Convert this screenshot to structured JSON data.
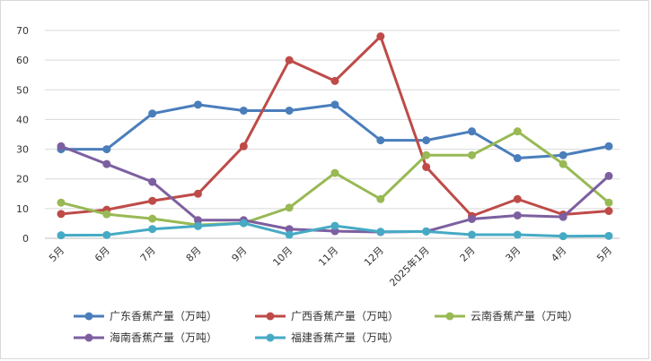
{
  "chart_data": {
    "type": "line",
    "categories": [
      "5月",
      "6月",
      "7月",
      "8月",
      "9月",
      "10月",
      "11月",
      "12月",
      "2025年1月",
      "2月",
      "3月",
      "4月",
      "5月"
    ],
    "ylim": [
      0,
      70
    ],
    "yticks": [
      0,
      10,
      20,
      30,
      40,
      50,
      60,
      70
    ],
    "grid": true,
    "legend_position": "bottom",
    "series": [
      {
        "name": "广东香蕉产量（万吨）",
        "color": "#4a7ebb",
        "values": [
          30,
          30,
          42,
          45,
          43,
          43,
          45,
          33,
          33,
          36,
          27,
          28,
          31
        ]
      },
      {
        "name": "广西香蕉产量（万吨）",
        "color": "#be4b48",
        "values": [
          8.2,
          9.6,
          12.6,
          15,
          31,
          60,
          53,
          68,
          24,
          7.5,
          13.2,
          8,
          9.2
        ]
      },
      {
        "name": "云南香蕉产量（万吨）",
        "color": "#98b954",
        "values": [
          12,
          8.1,
          6.6,
          4.5,
          5.1,
          10.3,
          22,
          13.2,
          28,
          28,
          36,
          25,
          12
        ]
      },
      {
        "name": "海南香蕉产量（万吨）",
        "color": "#7d5fa0",
        "values": [
          31,
          25,
          19,
          6.1,
          6.1,
          3.1,
          2.4,
          2.1,
          2.3,
          6.5,
          7.7,
          7.2,
          21
        ]
      },
      {
        "name": "福建香蕉产量（万吨）",
        "color": "#46aac5",
        "values": [
          1.0,
          1.1,
          3.1,
          4.1,
          5.1,
          1.2,
          4.2,
          2.2,
          2.3,
          1.2,
          1.2,
          0.7,
          0.8
        ]
      }
    ]
  }
}
